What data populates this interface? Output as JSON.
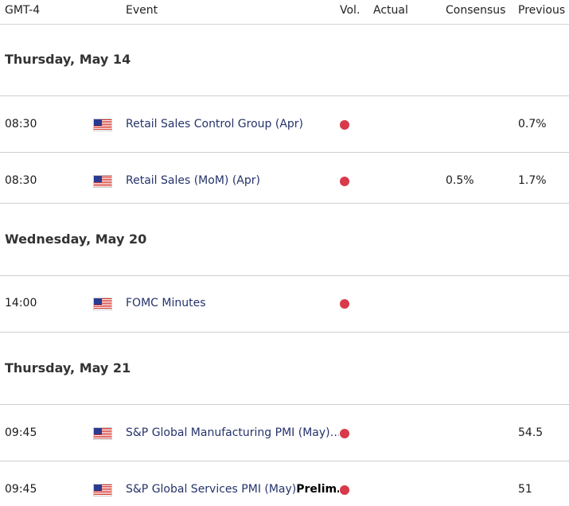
{
  "header": {
    "timezone": "GMT-4",
    "event": "Event",
    "vol": "Vol.",
    "actual": "Actual",
    "consensus": "Consensus",
    "previous": "Previous"
  },
  "days": [
    {
      "date": "Thursday, May 14",
      "events": [
        {
          "time": "08:30",
          "flag": "us-flag-icon",
          "name": "Retail Sales Control Group (Apr)",
          "suffix": "",
          "volatility": "high",
          "actual": "",
          "consensus": "",
          "previous": "0.7%"
        },
        {
          "time": "08:30",
          "flag": "us-flag-icon",
          "name": "Retail Sales (MoM) (Apr)",
          "suffix": "",
          "volatility": "high",
          "actual": "",
          "consensus": "0.5%",
          "previous": "1.7%"
        }
      ]
    },
    {
      "date": "Wednesday, May 20",
      "events": [
        {
          "time": "14:00",
          "flag": "us-flag-icon",
          "name": "FOMC Minutes",
          "suffix": "",
          "volatility": "high",
          "actual": "",
          "consensus": "",
          "previous": ""
        }
      ]
    },
    {
      "date": "Thursday, May 21",
      "events": [
        {
          "time": "09:45",
          "flag": "us-flag-icon",
          "name": "S&P Global Manufacturing PMI (May)…",
          "suffix": "",
          "volatility": "high",
          "actual": "",
          "consensus": "",
          "previous": "54.5"
        },
        {
          "time": "09:45",
          "flag": "us-flag-icon",
          "name": "S&P Global Services PMI (May)",
          "suffix": "Prelim…",
          "volatility": "high",
          "actual": "",
          "consensus": "",
          "previous": "51"
        }
      ]
    }
  ],
  "colors": {
    "high_volatility": "#d83a4a",
    "event_link": "#25336b",
    "divider": "#cfcfcf"
  }
}
